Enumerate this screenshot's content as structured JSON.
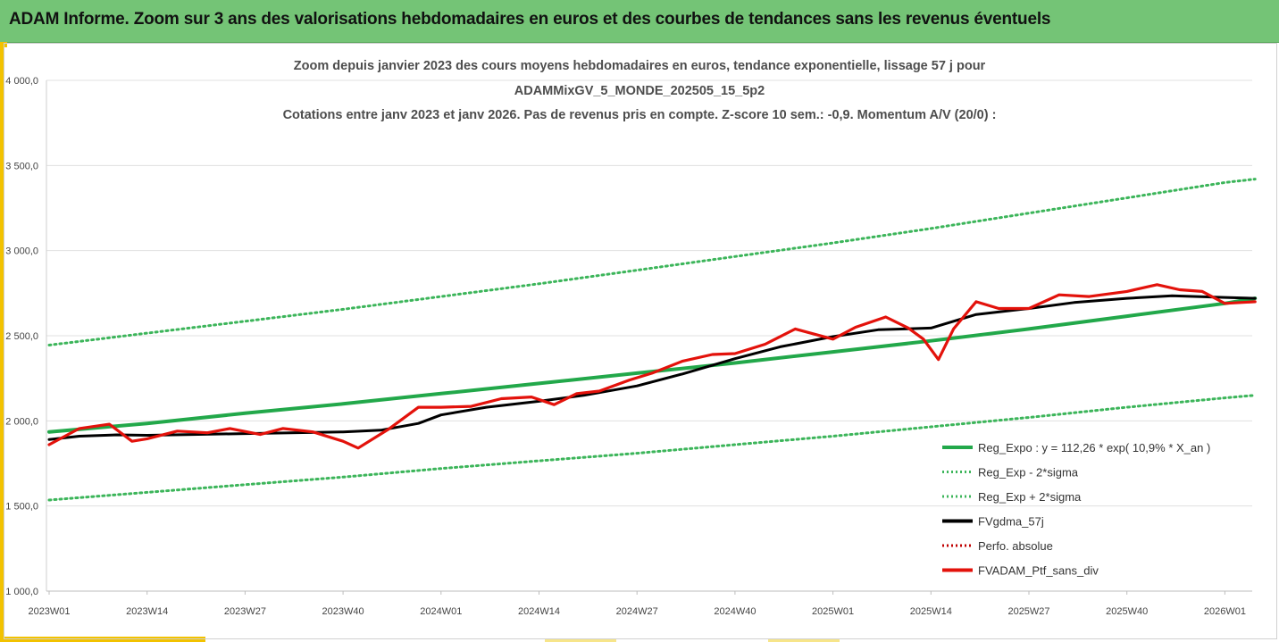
{
  "banner": {
    "title": "ADAM Informe. Zoom sur 3 ans des valorisations hebdomadaires en euros et des courbes de tendances sans les revenus éventuels"
  },
  "colors": {
    "banner": "#74c476",
    "regression": "#22a84a",
    "sigma": "#3cb55a",
    "smoothed": "#000000",
    "perfo": "#c00000",
    "portfolio": "#e3120b",
    "gridline": "#e0e0e0",
    "accent": "#f2c200"
  },
  "chart_data": {
    "type": "line",
    "title_lines": [
      "Zoom depuis janvier 2023 des cours moyens hebdomadaires  en euros, tendance exponentielle, lissage 57 j pour",
      "ADAMMixGV_5_MONDE_202505_15_5p2",
      "Cotations entre janv 2023 et janv 2026. Pas de revenus pris en compte. Z-score 10 sem.: -0,9. Momentum A/V (20/0) :"
    ],
    "x_ticks": [
      "2023W01",
      "2023W14",
      "2023W27",
      "2023W40",
      "2024W01",
      "2024W14",
      "2024W27",
      "2024W40",
      "2025W01",
      "2025W14",
      "2025W27",
      "2025W40",
      "2026W01"
    ],
    "y_ticks": [
      "1 000,0",
      "1 500,0",
      "2 000,0",
      "2 500,0",
      "3 000,0",
      "3 500,0",
      "4 000,0"
    ],
    "ylim": [
      1000,
      4000
    ],
    "grid": "horizontal",
    "legend_position": "bottom-right",
    "legend": [
      {
        "label": "Reg_Expo : y = 112,26 * exp( 10,9% *  X_an )",
        "style": "solid",
        "color": "#22a84a"
      },
      {
        "label": "Reg_Exp - 2*sigma",
        "style": "dotted",
        "color": "#3cb55a"
      },
      {
        "label": "Reg_Exp + 2*sigma",
        "style": "dotted",
        "color": "#3cb55a"
      },
      {
        "label": "FVgdma_57j",
        "style": "solid",
        "color": "#000000"
      },
      {
        "label": "Perfo. absolue",
        "style": "dotted",
        "color": "#c00000"
      },
      {
        "label": "FVADAM_Ptf_sans_div",
        "style": "solid",
        "color": "#e3120b"
      }
    ],
    "series": [
      {
        "name": "Reg_Expo : y = 112,26 * exp( 10,9% *  X_an )",
        "x": [
          "2023W01",
          "2023W14",
          "2023W27",
          "2023W40",
          "2024W01",
          "2024W14",
          "2024W27",
          "2024W40",
          "2025W01",
          "2025W14",
          "2025W27",
          "2025W40",
          "2026W01",
          "2026W05"
        ],
        "values": [
          1935,
          1985,
          2045,
          2100,
          2160,
          2220,
          2280,
          2340,
          2405,
          2470,
          2540,
          2615,
          2690,
          2720
        ]
      },
      {
        "name": "Reg_Exp - 2*sigma",
        "x": [
          "2023W01",
          "2023W14",
          "2023W27",
          "2023W40",
          "2024W01",
          "2024W14",
          "2024W27",
          "2024W40",
          "2025W01",
          "2025W14",
          "2025W27",
          "2025W40",
          "2026W01",
          "2026W05"
        ],
        "values": [
          1535,
          1580,
          1625,
          1670,
          1720,
          1765,
          1810,
          1860,
          1910,
          1965,
          2020,
          2080,
          2135,
          2150
        ]
      },
      {
        "name": "Reg_Exp + 2*sigma",
        "x": [
          "2023W01",
          "2023W14",
          "2023W27",
          "2023W40",
          "2024W01",
          "2024W14",
          "2024W27",
          "2024W40",
          "2025W01",
          "2025W14",
          "2025W27",
          "2025W40",
          "2026W01",
          "2026W05"
        ],
        "values": [
          2445,
          2515,
          2585,
          2655,
          2730,
          2805,
          2885,
          2965,
          3045,
          3130,
          3220,
          3310,
          3400,
          3420
        ]
      },
      {
        "name": "FVgdma_57j",
        "x": [
          "2023W01",
          "2023W05",
          "2023W10",
          "2023W14",
          "2023W20",
          "2023W27",
          "2023W33",
          "2023W40",
          "2023W45",
          "2023W50",
          "2024W01",
          "2024W07",
          "2024W14",
          "2024W20",
          "2024W27",
          "2024W33",
          "2024W40",
          "2024W46",
          "2025W01",
          "2025W07",
          "2025W14",
          "2025W20",
          "2025W27",
          "2025W33",
          "2025W40",
          "2025W46",
          "2026W01",
          "2026W05"
        ],
        "values": [
          1890,
          1910,
          1918,
          1915,
          1920,
          1925,
          1930,
          1935,
          1945,
          1985,
          2035,
          2080,
          2115,
          2150,
          2205,
          2275,
          2365,
          2435,
          2495,
          2535,
          2545,
          2625,
          2660,
          2695,
          2720,
          2735,
          2725,
          2720
        ]
      },
      {
        "name": "FVADAM_Ptf_sans_div",
        "x": [
          "2023W01",
          "2023W05",
          "2023W09",
          "2023W12",
          "2023W14",
          "2023W18",
          "2023W22",
          "2023W25",
          "2023W29",
          "2023W32",
          "2023W36",
          "2023W40",
          "2023W42",
          "2023W46",
          "2023W50",
          "2024W01",
          "2024W05",
          "2024W09",
          "2024W13",
          "2024W16",
          "2024W19",
          "2024W22",
          "2024W26",
          "2024W29",
          "2024W33",
          "2024W37",
          "2024W40",
          "2024W44",
          "2024W48",
          "2025W01",
          "2025W04",
          "2025W08",
          "2025W11",
          "2025W13",
          "2025W15",
          "2025W17",
          "2025W20",
          "2025W23",
          "2025W27",
          "2025W31",
          "2025W35",
          "2025W40",
          "2025W44",
          "2025W47",
          "2025W50",
          "2026W01",
          "2026W05"
        ],
        "values": [
          1860,
          1955,
          1980,
          1880,
          1895,
          1940,
          1930,
          1955,
          1920,
          1955,
          1935,
          1880,
          1840,
          1950,
          2080,
          2080,
          2085,
          2130,
          2140,
          2095,
          2160,
          2175,
          2240,
          2280,
          2350,
          2390,
          2395,
          2450,
          2540,
          2480,
          2550,
          2610,
          2545,
          2480,
          2360,
          2540,
          2700,
          2660,
          2660,
          2740,
          2730,
          2760,
          2800,
          2770,
          2760,
          2690,
          2700
        ]
      }
    ]
  }
}
